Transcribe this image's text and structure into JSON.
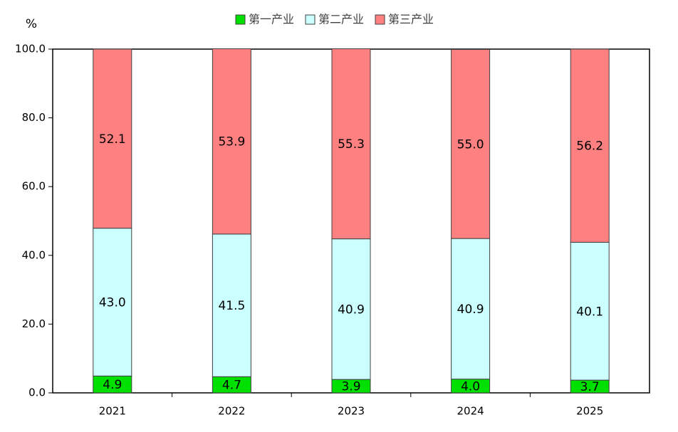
{
  "chart_data": {
    "type": "stacked_bar",
    "y_label": "%",
    "categories": [
      "2021",
      "2022",
      "2023",
      "2024",
      "2025"
    ],
    "series": [
      {
        "name": "第一产业",
        "color": "#00e000",
        "values": [
          4.9,
          4.7,
          3.9,
          4.0,
          3.7
        ],
        "value_labels": [
          "4.9",
          "4.7",
          "3.9",
          "4.0",
          "3.7"
        ]
      },
      {
        "name": "第二产业",
        "color": "#ccffff",
        "values": [
          43.0,
          41.5,
          40.9,
          40.9,
          40.1
        ],
        "value_labels": [
          "43.0",
          "41.5",
          "40.9",
          "40.9",
          "40.1"
        ]
      },
      {
        "name": "第三产业",
        "color": "#ff8080",
        "values": [
          52.1,
          53.9,
          55.3,
          55.0,
          56.2
        ],
        "value_labels": [
          "52.1",
          "53.9",
          "55.3",
          "55.0",
          "56.2"
        ]
      }
    ],
    "ylim": [
      0,
      100
    ],
    "yticks": [
      {
        "value": 0,
        "label": "0.0"
      },
      {
        "value": 20,
        "label": "20.0"
      },
      {
        "value": 40,
        "label": "40.0"
      },
      {
        "value": 60,
        "label": "60.0"
      },
      {
        "value": 80,
        "label": "80.0"
      },
      {
        "value": 100,
        "label": "100.0"
      }
    ],
    "legend": "top"
  }
}
